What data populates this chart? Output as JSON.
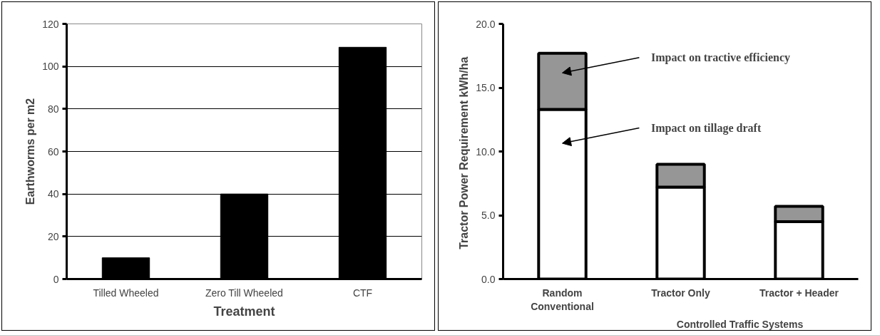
{
  "chart_data": [
    {
      "type": "bar",
      "xlabel": "Treatment",
      "ylabel": "Earthworms per m2",
      "categories": [
        "Tilled Wheeled",
        "Zero Till Wheeled",
        "CTF"
      ],
      "values": [
        10,
        40,
        109
      ],
      "color": "#000000",
      "ylim": [
        0,
        120
      ],
      "yticks": [
        0,
        20,
        40,
        60,
        80,
        100,
        120
      ],
      "grid": "y"
    },
    {
      "type": "bar",
      "stacked": true,
      "xlabel": "Controlled Traffic Systems",
      "ylabel": "Tractor Power Requirement  kWh/ha",
      "categories": [
        "Random\nConventional",
        "Tractor Only",
        "Tractor + Header"
      ],
      "series": [
        {
          "color": "#ffffff",
          "values": [
            13.3,
            7.2,
            4.5
          ]
        },
        {
          "color": "#969696",
          "values": [
            4.4,
            1.8,
            1.2
          ]
        }
      ],
      "ylim": [
        0,
        20
      ],
      "yticks": [
        {
          "value": 0,
          "label": "0.0"
        },
        {
          "value": 5,
          "label": "5.0"
        },
        {
          "value": 10,
          "label": "10.0"
        },
        {
          "value": 15,
          "label": "15.0"
        },
        {
          "value": 20,
          "label": "20.0"
        }
      ],
      "annotations": [
        "Impact on tractive efficiency",
        "Impact on tillage draft"
      ]
    }
  ]
}
